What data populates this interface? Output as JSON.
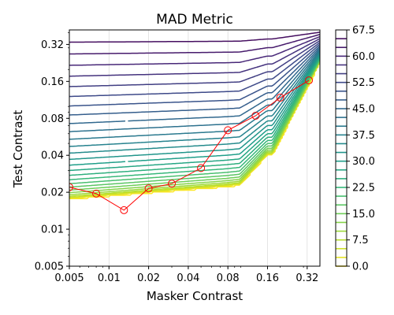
{
  "chart_data": {
    "type": "contour",
    "title": "MAD Metric",
    "xlabel": "Masker Contrast",
    "ylabel": "Test Contrast",
    "xscale": "log",
    "yscale": "log",
    "xlim": [
      0.005,
      0.4
    ],
    "ylim": [
      0.005,
      0.42
    ],
    "xticks": [
      0.005,
      0.01,
      0.02,
      0.04,
      0.08,
      0.16,
      0.32
    ],
    "xtick_labels": [
      "0.005",
      "0.01",
      "0.02",
      "0.04",
      "0.08",
      "0.16",
      "0.32"
    ],
    "yticks": [
      0.005,
      0.01,
      0.02,
      0.04,
      0.08,
      0.16,
      0.32
    ],
    "ytick_labels": [
      "0.005",
      "0.01",
      "0.02",
      "0.04",
      "0.08",
      "0.16",
      "0.32"
    ],
    "grid": "vertical",
    "colormap": "viridis_r",
    "levels": [
      0,
      2.5,
      5,
      7.5,
      10,
      12.5,
      15,
      17.5,
      20,
      22.5,
      25,
      27.5,
      30,
      32.5,
      35,
      37.5,
      40,
      42.5,
      45,
      47.5,
      50,
      52.5,
      55,
      57.5,
      60,
      62.5,
      65,
      67.5
    ],
    "colorbar": {
      "ticks": [
        0.0,
        7.5,
        15.0,
        22.5,
        30.0,
        37.5,
        45.0,
        52.5,
        60.0,
        67.5
      ],
      "tick_labels": [
        "0.0",
        "7.5",
        "15.0",
        "22.5",
        "30.0",
        "37.5",
        "45.0",
        "52.5",
        "60.0",
        "67.5"
      ]
    },
    "threshold_series": {
      "color": "#ff0000",
      "marker": "open-circle",
      "x": [
        0.005,
        0.008,
        0.013,
        0.02,
        0.03,
        0.05,
        0.08,
        0.13,
        0.2,
        0.33
      ],
      "y": [
        0.022,
        0.0195,
        0.0143,
        0.0215,
        0.0235,
        0.0315,
        0.064,
        0.084,
        0.118,
        0.163
      ]
    }
  }
}
